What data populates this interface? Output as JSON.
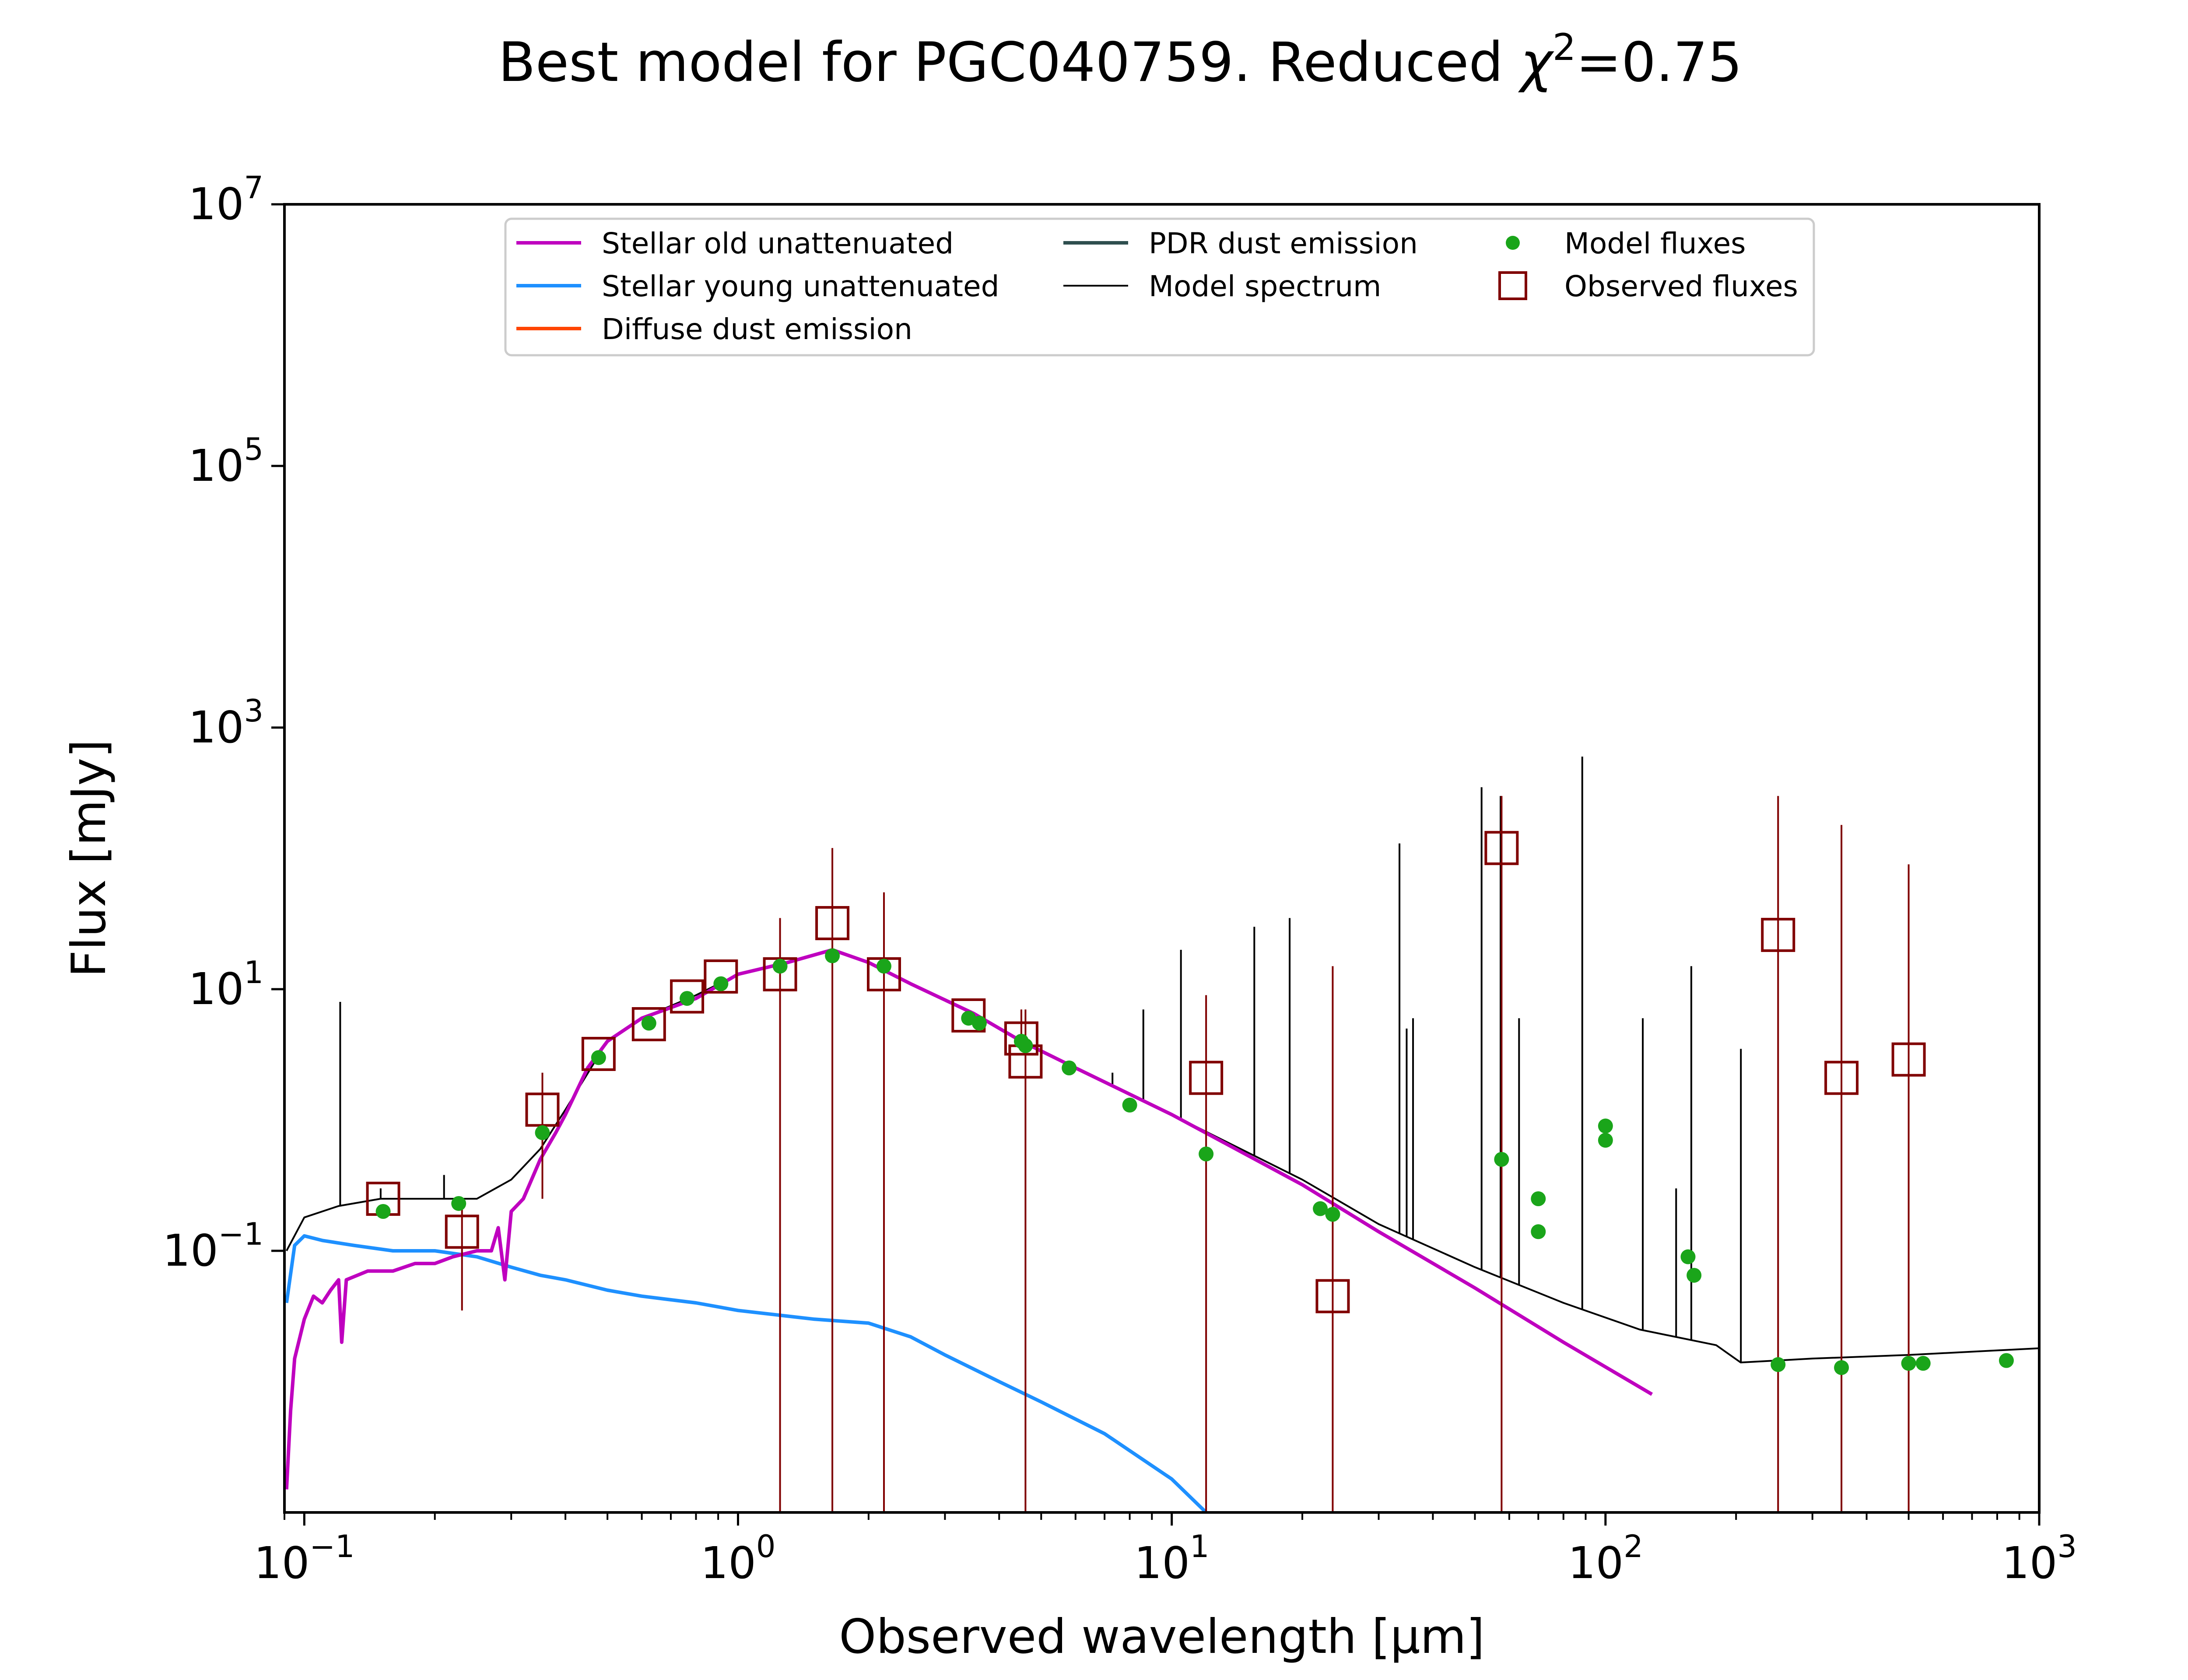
{
  "chart_data": {
    "type": "line",
    "title_main": "Best model for PGC040759. Reduced ",
    "title_chi": "χ",
    "title_sup": "2",
    "title_tail": "=0.75",
    "xlabel": "Observed wavelength [μm]",
    "ylabel": "Flux [mJy]",
    "xscale": "log",
    "yscale": "log",
    "xlim": [
      0.09,
      1000
    ],
    "ylim": [
      0.001,
      10000000
    ],
    "x_ticks": [
      {
        "value": 0.1,
        "base": "10",
        "exp": "−1"
      },
      {
        "value": 1,
        "base": "10",
        "exp": "0"
      },
      {
        "value": 10,
        "base": "10",
        "exp": "1"
      },
      {
        "value": 100,
        "base": "10",
        "exp": "2"
      },
      {
        "value": 1000,
        "base": "10",
        "exp": "3"
      }
    ],
    "y_ticks": [
      {
        "value": 0.1,
        "base": "10",
        "exp": "−1"
      },
      {
        "value": 10,
        "base": "10",
        "exp": "1"
      },
      {
        "value": 1000,
        "base": "10",
        "exp": "3"
      },
      {
        "value": 100000,
        "base": "10",
        "exp": "5"
      },
      {
        "value": 10000000,
        "base": "10",
        "exp": "7"
      }
    ],
    "legend_position": "top-center",
    "legend": [
      {
        "label": "Stellar old unattenuated",
        "kind": "line",
        "color": "#bf00bf"
      },
      {
        "label": "Stellar young unattenuated",
        "kind": "line",
        "color": "#1e90ff"
      },
      {
        "label": "Diffuse dust emission",
        "kind": "line",
        "color": "#ff4500"
      },
      {
        "label": "PDR dust emission",
        "kind": "line",
        "color": "#2f4f4f"
      },
      {
        "label": "Model spectrum",
        "kind": "thinline",
        "color": "#000000"
      },
      {
        "label": "Model fluxes",
        "kind": "dot",
        "color": "#1aa51a"
      },
      {
        "label": "Observed fluxes",
        "kind": "square",
        "color": "#800000"
      }
    ],
    "series": [
      {
        "name": "Stellar old unattenuated",
        "color": "#bf00bf",
        "points": [
          [
            0.091,
            0.0015
          ],
          [
            0.093,
            0.006
          ],
          [
            0.095,
            0.015
          ],
          [
            0.1,
            0.03
          ],
          [
            0.105,
            0.045
          ],
          [
            0.11,
            0.04
          ],
          [
            0.115,
            0.05
          ],
          [
            0.12,
            0.06
          ],
          [
            0.122,
            0.02
          ],
          [
            0.125,
            0.06
          ],
          [
            0.14,
            0.07
          ],
          [
            0.16,
            0.07
          ],
          [
            0.18,
            0.08
          ],
          [
            0.2,
            0.08
          ],
          [
            0.22,
            0.09
          ],
          [
            0.25,
            0.1
          ],
          [
            0.27,
            0.1
          ],
          [
            0.28,
            0.15
          ],
          [
            0.29,
            0.06
          ],
          [
            0.3,
            0.2
          ],
          [
            0.32,
            0.25
          ],
          [
            0.35,
            0.5
          ],
          [
            0.38,
            0.8
          ],
          [
            0.4,
            1.1
          ],
          [
            0.45,
            2.5
          ],
          [
            0.5,
            4
          ],
          [
            0.6,
            6
          ],
          [
            0.8,
            8.5
          ],
          [
            1.0,
            13
          ],
          [
            1.3,
            16
          ],
          [
            1.65,
            20
          ],
          [
            2.0,
            16
          ],
          [
            2.5,
            11
          ],
          [
            3.5,
            6.5
          ],
          [
            4.5,
            4
          ],
          [
            6,
            2.5
          ],
          [
            10,
            1.1
          ],
          [
            20,
            0.32
          ],
          [
            30,
            0.14
          ],
          [
            50,
            0.052
          ],
          [
            80,
            0.02
          ],
          [
            128,
            0.008
          ]
        ]
      },
      {
        "name": "Stellar young unattenuated",
        "color": "#1e90ff",
        "points": [
          [
            0.091,
            0.04
          ],
          [
            0.095,
            0.11
          ],
          [
            0.1,
            0.13
          ],
          [
            0.11,
            0.12
          ],
          [
            0.13,
            0.11
          ],
          [
            0.16,
            0.1
          ],
          [
            0.2,
            0.1
          ],
          [
            0.25,
            0.09
          ],
          [
            0.3,
            0.075
          ],
          [
            0.35,
            0.065
          ],
          [
            0.4,
            0.06
          ],
          [
            0.5,
            0.05
          ],
          [
            0.6,
            0.045
          ],
          [
            0.8,
            0.04
          ],
          [
            1.0,
            0.035
          ],
          [
            1.5,
            0.03
          ],
          [
            2.0,
            0.028
          ],
          [
            2.5,
            0.022
          ],
          [
            3.0,
            0.016
          ],
          [
            4.0,
            0.01
          ],
          [
            5.0,
            0.007
          ],
          [
            7,
            0.004
          ],
          [
            10,
            0.0018
          ],
          [
            12,
            0.001
          ]
        ]
      },
      {
        "name": "Model spectrum",
        "color": "#000000",
        "points": [
          [
            0.091,
            0.1
          ],
          [
            0.1,
            0.18
          ],
          [
            0.12,
            0.22
          ],
          [
            0.15,
            0.25
          ],
          [
            0.2,
            0.25
          ],
          [
            0.25,
            0.25
          ],
          [
            0.3,
            0.35
          ],
          [
            0.35,
            0.6
          ],
          [
            0.4,
            1.2
          ],
          [
            0.5,
            4
          ],
          [
            0.6,
            6
          ],
          [
            0.8,
            9
          ],
          [
            1.0,
            13
          ],
          [
            1.3,
            16
          ],
          [
            1.65,
            20
          ],
          [
            2.0,
            16
          ],
          [
            2.5,
            11
          ],
          [
            3.5,
            6.5
          ],
          [
            4.5,
            4
          ],
          [
            6,
            2.5
          ],
          [
            10,
            1.1
          ],
          [
            20,
            0.35
          ],
          [
            30,
            0.16
          ],
          [
            50,
            0.075
          ],
          [
            80,
            0.04
          ],
          [
            120,
            0.025
          ],
          [
            180,
            0.019
          ],
          [
            205,
            0.014
          ],
          [
            300,
            0.015
          ],
          [
            500,
            0.016
          ],
          [
            1000,
            0.018
          ]
        ]
      }
    ],
    "spectrum_spikes": [
      {
        "x": 0.121,
        "y": 8
      },
      {
        "x": 0.15,
        "y": 0.3
      },
      {
        "x": 0.21,
        "y": 0.38
      },
      {
        "x": 7.3,
        "y": 2.3
      },
      {
        "x": 8.6,
        "y": 7
      },
      {
        "x": 10.5,
        "y": 20
      },
      {
        "x": 15.5,
        "y": 30
      },
      {
        "x": 18.7,
        "y": 35
      },
      {
        "x": 33.5,
        "y": 130
      },
      {
        "x": 34.8,
        "y": 5
      },
      {
        "x": 36.0,
        "y": 6
      },
      {
        "x": 51.8,
        "y": 350
      },
      {
        "x": 57.3,
        "y": 300
      },
      {
        "x": 63.2,
        "y": 6
      },
      {
        "x": 88.4,
        "y": 600
      },
      {
        "x": 121.9,
        "y": 6
      },
      {
        "x": 145.5,
        "y": 0.3
      },
      {
        "x": 157.7,
        "y": 15
      },
      {
        "x": 205.2,
        "y": 3.5
      }
    ],
    "model_fluxes": [
      [
        0.152,
        0.2
      ],
      [
        0.227,
        0.23
      ],
      [
        0.354,
        0.8
      ],
      [
        0.477,
        3
      ],
      [
        0.623,
        5.5
      ],
      [
        0.763,
        8.5
      ],
      [
        0.913,
        11
      ],
      [
        1.25,
        15
      ],
      [
        1.65,
        18
      ],
      [
        2.17,
        15
      ],
      [
        3.4,
        6
      ],
      [
        3.6,
        5.5
      ],
      [
        4.5,
        4
      ],
      [
        4.6,
        3.7
      ],
      [
        5.8,
        2.5
      ],
      [
        8.0,
        1.3
      ],
      [
        12,
        0.55
      ],
      [
        22,
        0.21
      ],
      [
        23.5,
        0.19
      ],
      [
        57.6,
        0.5
      ],
      [
        70,
        0.25
      ],
      [
        70,
        0.14
      ],
      [
        100,
        0.7
      ],
      [
        100,
        0.9
      ],
      [
        155,
        0.09
      ],
      [
        160,
        0.065
      ],
      [
        250,
        0.0135
      ],
      [
        350,
        0.0128
      ],
      [
        500,
        0.0138
      ],
      [
        540,
        0.0138
      ],
      [
        840,
        0.0145
      ]
    ],
    "observed_fluxes": [
      {
        "x": 0.152,
        "y": 0.25,
        "lo": 0.25,
        "hi": 0.25
      },
      {
        "x": 0.231,
        "y": 0.14,
        "lo": 0.035,
        "hi": 0.25
      },
      {
        "x": 0.354,
        "y": 1.2,
        "lo": 0.25,
        "hi": 2.3
      },
      {
        "x": 0.477,
        "y": 3.2,
        "lo": 3.2,
        "hi": 3.2
      },
      {
        "x": 0.623,
        "y": 5.4,
        "lo": 5.4,
        "hi": 5.4
      },
      {
        "x": 0.763,
        "y": 8.8,
        "lo": 8.8,
        "hi": 8.8
      },
      {
        "x": 0.913,
        "y": 12.5,
        "lo": 12.5,
        "hi": 12.5
      },
      {
        "x": 1.25,
        "y": 13,
        "lo": 0.001,
        "hi": 35
      },
      {
        "x": 1.65,
        "y": 32,
        "lo": 0.001,
        "hi": 120
      },
      {
        "x": 2.17,
        "y": 13,
        "lo": 0.001,
        "hi": 55
      },
      {
        "x": 3.4,
        "y": 6.3,
        "lo": 6.3,
        "hi": 6.3
      },
      {
        "x": 4.5,
        "y": 4.2,
        "lo": 4.2,
        "hi": 7
      },
      {
        "x": 4.6,
        "y": 2.8,
        "lo": 0.001,
        "hi": 7
      },
      {
        "x": 12,
        "y": 2.1,
        "lo": 0.001,
        "hi": 9
      },
      {
        "x": 23.5,
        "y": 0.045,
        "lo": 0.001,
        "hi": 15
      },
      {
        "x": 57.6,
        "y": 120,
        "lo": 0.001,
        "hi": 300
      },
      {
        "x": 250,
        "y": 26,
        "lo": 0.001,
        "hi": 300
      },
      {
        "x": 350,
        "y": 2.1,
        "lo": 0.001,
        "hi": 180
      },
      {
        "x": 500,
        "y": 2.9,
        "lo": 0.001,
        "hi": 90
      }
    ]
  }
}
